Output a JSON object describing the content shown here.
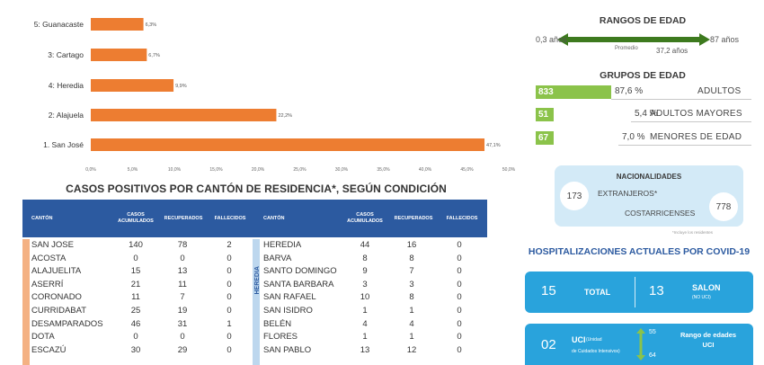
{
  "chart_data": {
    "type": "bar",
    "orientation": "horizontal",
    "categories": [
      "1. San José",
      "2: Alajuela",
      "4: Heredia",
      "3: Cartago",
      "5: Guanacaste"
    ],
    "values": [
      47.1,
      22.2,
      9.9,
      6.7,
      6.3
    ],
    "value_labels": [
      "47,1%",
      "22,2%",
      "9,9%",
      "6,7%",
      "6,3%"
    ],
    "xlim": [
      0,
      50
    ],
    "xticks": [
      "0,0%",
      "5,0%",
      "10,0%",
      "15,0%",
      "20,0%",
      "25,0%",
      "30,0%",
      "35,0%",
      "40,0%",
      "45,0%",
      "50,0%"
    ],
    "bar_color": "#ed7d31",
    "grid": false
  },
  "table": {
    "title": "CASOS POSITIVOS POR CANTÓN DE RESIDENCIA*, SEGÚN CONDICIÓN",
    "header_color": "#2c5aa0",
    "headers": [
      "CANTÓN",
      "CASOS ACUMULADOS",
      "RECUPERADOS",
      "FALLECIDOS"
    ],
    "left_province": "SAN JOSÉ",
    "right_province": "HEREDIA",
    "left_rows": [
      {
        "name": "SAN JOSE",
        "cases": "140",
        "recovered": "78",
        "deaths": "2"
      },
      {
        "name": "ACOSTA",
        "cases": "0",
        "recovered": "0",
        "deaths": "0"
      },
      {
        "name": "ALAJUELITA",
        "cases": "15",
        "recovered": "13",
        "deaths": "0"
      },
      {
        "name": "ASERRÍ",
        "cases": "21",
        "recovered": "11",
        "deaths": "0"
      },
      {
        "name": "CORONADO",
        "cases": "11",
        "recovered": "7",
        "deaths": "0"
      },
      {
        "name": "CURRIDABAT",
        "cases": "25",
        "recovered": "19",
        "deaths": "0"
      },
      {
        "name": "DESAMPARADOS",
        "cases": "46",
        "recovered": "31",
        "deaths": "1"
      },
      {
        "name": "DOTA",
        "cases": "0",
        "recovered": "0",
        "deaths": "0"
      },
      {
        "name": "ESCAZÚ",
        "cases": "30",
        "recovered": "29",
        "deaths": "0"
      }
    ],
    "right_rows": [
      {
        "name": "HEREDIA",
        "cases": "44",
        "recovered": "16",
        "deaths": "0"
      },
      {
        "name": "BARVA",
        "cases": "8",
        "recovered": "8",
        "deaths": "0"
      },
      {
        "name": "SANTO DOMINGO",
        "cases": "9",
        "recovered": "7",
        "deaths": "0"
      },
      {
        "name": "SANTA BARBARA",
        "cases": "3",
        "recovered": "3",
        "deaths": "0"
      },
      {
        "name": "SAN RAFAEL",
        "cases": "10",
        "recovered": "8",
        "deaths": "0"
      },
      {
        "name": "SAN ISIDRO",
        "cases": "1",
        "recovered": "1",
        "deaths": "0"
      },
      {
        "name": "BELÉN",
        "cases": "4",
        "recovered": "4",
        "deaths": "0"
      },
      {
        "name": "FLORES",
        "cases": "1",
        "recovered": "1",
        "deaths": "0"
      },
      {
        "name": "SAN PABLO",
        "cases": "13",
        "recovered": "12",
        "deaths": "0"
      }
    ]
  },
  "age_range": {
    "title": "RANGOS DE EDAD",
    "min": "0,3 años",
    "max": "87 años",
    "mid_label": "Promedio",
    "mean": "37,2 años",
    "arrow_color": "#3d7a1e"
  },
  "age_groups": {
    "title": "GRUPOS DE EDAD",
    "bar_color": "#8bc34a",
    "items": [
      {
        "count": "833",
        "count_value": 833,
        "percent": "87,6 %",
        "name": "ADULTOS"
      },
      {
        "count": "51",
        "count_value": 51,
        "percent": "5,4 %",
        "name": "ADULTOS MAYORES"
      },
      {
        "count": "67",
        "count_value": 67,
        "percent": "7,0 %",
        "name": "MENORES DE EDAD"
      }
    ]
  },
  "nationalities": {
    "title": "NACIONALIDADES",
    "foreign_count": "173",
    "foreign_label": "EXTRANJEROS*",
    "local_count": "778",
    "local_label": "COSTARRICENSES",
    "note": "*Incluye los residentes",
    "box_color": "#d3eaf7"
  },
  "hospital": {
    "title": "HOSPITALIZACIONES ACTUALES POR COVID-19",
    "box_color": "#29a3dc",
    "total_count": "15",
    "total_label": "TOTAL",
    "salon_count": "13",
    "salon_label": "SALON",
    "salon_sub": "(NO UCI)",
    "uci_count": "02",
    "uci_label": "UCI",
    "uci_sub": "(Unidad",
    "uci_sub2": "de Cuidados Intensivos)",
    "uci_age_max": "55",
    "uci_age_min": "64",
    "uci_range_label": "Rango de edades",
    "uci_range_unit": "UCI"
  }
}
